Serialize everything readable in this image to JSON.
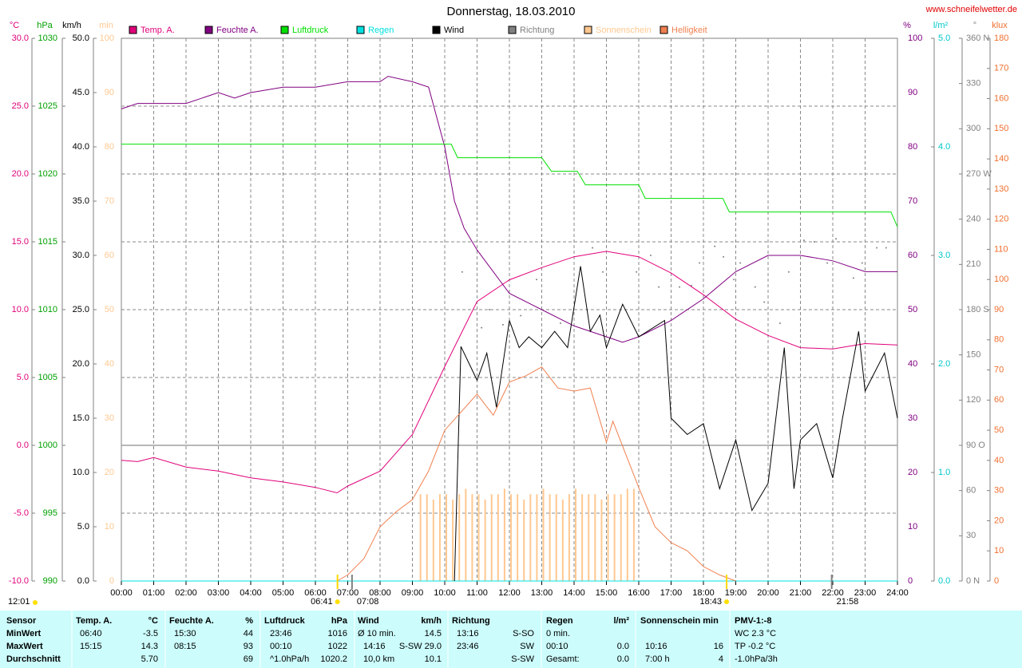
{
  "chart_data": {
    "type": "line",
    "title": "Donnerstag, 18.03.2010",
    "source": "www.schneifelwetter.de",
    "updated": "12:01",
    "grid": true,
    "xlim": [
      0,
      24
    ],
    "xticks": [
      {
        "value": 0,
        "label": "00:00"
      },
      {
        "value": 1,
        "label": "01:00"
      },
      {
        "value": 2,
        "label": "02:00"
      },
      {
        "value": 3,
        "label": "03:00"
      },
      {
        "value": 4,
        "label": "04:00"
      },
      {
        "value": 5,
        "label": "05:00"
      },
      {
        "value": 6,
        "label": "06:00"
      },
      {
        "value": 7,
        "label": "07:00"
      },
      {
        "value": 8,
        "label": "08:00"
      },
      {
        "value": 9,
        "label": "09:00"
      },
      {
        "value": 10,
        "label": "10:00"
      },
      {
        "value": 11,
        "label": "11:00"
      },
      {
        "value": 12,
        "label": "12:00"
      },
      {
        "value": 13,
        "label": "13:00"
      },
      {
        "value": 14,
        "label": "14:00"
      },
      {
        "value": 15,
        "label": "15:00"
      },
      {
        "value": 16,
        "label": "16:00"
      },
      {
        "value": 17,
        "label": "17:00"
      },
      {
        "value": 18,
        "label": "18:00"
      },
      {
        "value": 19,
        "label": "19:00"
      },
      {
        "value": 20,
        "label": "20:00"
      },
      {
        "value": 21,
        "label": "21:00"
      },
      {
        "value": 22,
        "label": "22:00"
      },
      {
        "value": 23,
        "label": "23:00"
      },
      {
        "value": 24,
        "label": "24:00"
      }
    ],
    "annotations": [
      {
        "label": "06:41",
        "x": 6.683,
        "kind": "sunrise"
      },
      {
        "label": "07:08",
        "x": 7.133,
        "kind": "mark"
      },
      {
        "label": "18:43",
        "x": 18.717,
        "kind": "sunset"
      },
      {
        "label": "21:58",
        "x": 21.967,
        "kind": "mark"
      }
    ],
    "axes": {
      "temp": {
        "unit": "°C",
        "color": "#e0007a",
        "ylim": [
          -10,
          30
        ],
        "yticks": [
          {
            "value": -10,
            "label": "-10.0"
          },
          {
            "value": -5,
            "label": "-5.0"
          },
          {
            "value": 0,
            "label": "0.0"
          },
          {
            "value": 5,
            "label": "5.0"
          },
          {
            "value": 10,
            "label": "10.0"
          },
          {
            "value": 15,
            "label": "15.0"
          },
          {
            "value": 20,
            "label": "20.0"
          },
          {
            "value": 25,
            "label": "25.0"
          },
          {
            "value": 30,
            "label": "30.0"
          }
        ]
      },
      "press": {
        "unit": "hPa",
        "color": "#00a000",
        "ylim": [
          990,
          1030
        ],
        "yticks": [
          990,
          995,
          1000,
          1005,
          1010,
          1015,
          1020,
          1025,
          1030
        ]
      },
      "wind": {
        "unit": "km/h",
        "color": "#000000",
        "ylim": [
          0,
          50
        ],
        "yticks": [
          {
            "value": 0,
            "label": "0.0"
          },
          {
            "value": 5,
            "label": "5.0"
          },
          {
            "value": 10,
            "label": "10.0"
          },
          {
            "value": 15,
            "label": "15.0"
          },
          {
            "value": 20,
            "label": "20.0"
          },
          {
            "value": 25,
            "label": "25.0"
          },
          {
            "value": 30,
            "label": "30.0"
          },
          {
            "value": 35,
            "label": "35.0"
          },
          {
            "value": 40,
            "label": "40.0"
          },
          {
            "value": 45,
            "label": "45.0"
          },
          {
            "value": 50,
            "label": "50.0"
          }
        ]
      },
      "sun": {
        "unit": "min",
        "color": "#ffc890",
        "ylim": [
          0,
          100
        ],
        "yticks": [
          0,
          10,
          20,
          30,
          40,
          50,
          60,
          70,
          80,
          90,
          100
        ]
      },
      "hum": {
        "unit": "%",
        "color": "#800080",
        "ylim": [
          0,
          100
        ],
        "yticks": [
          0,
          10,
          20,
          30,
          40,
          50,
          60,
          70,
          80,
          90,
          100
        ]
      },
      "rain": {
        "unit": "l/m²",
        "color": "#00c8c8",
        "ylim": [
          0,
          5
        ],
        "yticks": [
          {
            "value": 0,
            "label": "0.0"
          },
          {
            "value": 1,
            "label": "1.0"
          },
          {
            "value": 2,
            "label": "2.0"
          },
          {
            "value": 3,
            "label": "3.0"
          },
          {
            "value": 4,
            "label": "4.0"
          },
          {
            "value": 5,
            "label": "5.0"
          }
        ]
      },
      "dir": {
        "unit": "°",
        "color": "#808080",
        "ylim": [
          0,
          360
        ],
        "yticks": [
          {
            "value": 0,
            "label": "0 N"
          },
          30,
          60,
          {
            "value": 90,
            "label": "90 O"
          },
          120,
          150,
          {
            "value": 180,
            "label": "180 S"
          },
          210,
          240,
          {
            "value": 270,
            "label": "270 W"
          },
          300,
          330,
          {
            "value": 360,
            "label": "360 N"
          }
        ]
      },
      "lux": {
        "unit": "klux",
        "color": "#f07030",
        "ylim": [
          0,
          180
        ],
        "yticks": [
          0,
          10,
          20,
          30,
          40,
          50,
          60,
          70,
          80,
          90,
          100,
          110,
          120,
          130,
          140,
          150,
          160,
          170,
          180
        ]
      }
    },
    "series": [
      {
        "name": "Temp. A.",
        "color": "#e0007a",
        "axis": "temp",
        "mode": "line",
        "x": [
          0,
          0.5,
          1,
          2,
          3,
          4,
          5,
          6,
          6.67,
          7,
          8,
          9,
          10,
          11,
          12,
          13,
          14,
          15,
          16,
          17,
          18,
          19,
          20,
          21,
          22,
          23,
          24
        ],
        "values": [
          -1.1,
          -1.2,
          -0.9,
          -1.6,
          -1.9,
          -2.4,
          -2.7,
          -3.1,
          -3.5,
          -3.0,
          -1.9,
          0.8,
          5.8,
          10.6,
          12.2,
          13.1,
          13.9,
          14.3,
          13.9,
          12.7,
          11.1,
          9.3,
          8.1,
          7.2,
          7.1,
          7.5,
          7.4
        ]
      },
      {
        "name": "Feuchte A.",
        "color": "#800080",
        "axis": "hum",
        "mode": "line",
        "x": [
          0,
          0.5,
          1,
          2,
          2.5,
          3,
          3.5,
          4,
          5,
          6,
          7,
          8,
          8.25,
          9,
          9.5,
          10,
          10.3,
          10.6,
          11,
          12,
          13,
          14,
          15,
          15.5,
          16,
          17,
          18,
          19,
          20,
          21,
          22,
          23,
          24
        ],
        "values": [
          87,
          88,
          88,
          88,
          89,
          90,
          89,
          90,
          91,
          91,
          92,
          92,
          93,
          92,
          91,
          80,
          70,
          65,
          61,
          53,
          50,
          47,
          45,
          44,
          45,
          48,
          52,
          57,
          60,
          60,
          59,
          57,
          57
        ]
      },
      {
        "name": "Luftdruck",
        "color": "#00e000",
        "axis": "press",
        "mode": "line",
        "x": [
          0,
          10.2,
          10.4,
          13.0,
          13.3,
          14.1,
          14.35,
          16.0,
          16.2,
          18.6,
          18.8,
          23.8,
          24
        ],
        "values": [
          1022.2,
          1022.2,
          1021.2,
          1021.2,
          1020.2,
          1020.2,
          1019.2,
          1019.2,
          1018.2,
          1018.2,
          1017.2,
          1017.2,
          1016.1
        ]
      },
      {
        "name": "Regen",
        "color": "#00e0e0",
        "axis": "rain",
        "mode": "line",
        "x": [
          0,
          24
        ],
        "values": [
          0,
          0
        ]
      },
      {
        "name": "Wind",
        "color": "#000000",
        "axis": "wind",
        "mode": "line",
        "x": [
          10.3,
          10.5,
          11.0,
          11.3,
          11.6,
          12.0,
          12.3,
          12.6,
          13.0,
          13.4,
          13.8,
          14.2,
          14.5,
          14.8,
          15.0,
          15.5,
          16.0,
          16.8,
          17.0,
          17.5,
          18.0,
          18.5,
          19.0,
          19.5,
          20.0,
          20.5,
          20.8,
          21.0,
          21.5,
          22.0,
          22.3,
          22.8,
          23.0,
          23.6,
          24
        ],
        "values": [
          0,
          21.6,
          18.5,
          21,
          16,
          24,
          21.5,
          22.5,
          21.5,
          23,
          21.5,
          29,
          23,
          24.5,
          21.5,
          25.5,
          22.5,
          24,
          15,
          13.5,
          14.5,
          8.5,
          13,
          6.5,
          9,
          21.5,
          8.5,
          13,
          14.5,
          9.5,
          15,
          23,
          17.5,
          21,
          15
        ]
      },
      {
        "name": "Richtung",
        "color": "#808080",
        "axis": "dir",
        "mode": "markers",
        "x": [
          10.54,
          11.14,
          11.38,
          11.8,
          12.35,
          12.84,
          13.58,
          14.57,
          14.89,
          15.93,
          16.37,
          16.62,
          17.26,
          17.63,
          17.88,
          18.35,
          18.62,
          18.94,
          19.14,
          19.6,
          19.88,
          20.37,
          20.64,
          21.11,
          21.43,
          21.83,
          22.1,
          22.64,
          22.91,
          23.36,
          23.65
        ],
        "values": [
          205,
          168,
          180,
          170,
          176,
          200,
          171,
          221,
          205,
          205,
          216,
          195,
          195,
          196,
          211,
          222,
          215,
          200,
          211,
          195,
          185,
          171,
          205,
          226,
          225,
          211,
          227,
          201,
          211,
          221,
          221
        ]
      },
      {
        "name": "Sonnenschein",
        "color": "#ffc890",
        "axis": "sun",
        "mode": "bars",
        "x": [
          9.25,
          9.45,
          9.65,
          9.85,
          10.05,
          10.25,
          10.45,
          10.65,
          10.85,
          11.05,
          11.25,
          11.45,
          11.65,
          11.85,
          12.05,
          12.25,
          12.45,
          12.65,
          12.85,
          13.05,
          13.25,
          13.45,
          13.65,
          13.85,
          14.05,
          14.25,
          14.45,
          14.65,
          14.85,
          15.05,
          15.25,
          15.45,
          15.65,
          15.85
        ],
        "values": [
          16,
          16,
          15,
          16,
          16,
          15,
          16,
          17,
          16,
          16,
          15,
          16,
          16,
          17,
          16,
          16,
          15,
          16,
          16,
          17,
          16,
          16,
          15,
          16,
          17,
          16,
          16,
          16,
          15,
          16,
          16,
          16,
          17,
          17
        ]
      },
      {
        "name": "Helligkeit",
        "color": "#f08050",
        "axis": "lux",
        "mode": "line",
        "x": [
          6.67,
          7.0,
          7.5,
          8.0,
          8.5,
          9.0,
          9.5,
          10.0,
          10.5,
          11.0,
          11.5,
          12.0,
          12.5,
          13.0,
          13.5,
          14.0,
          14.5,
          15.0,
          15.2,
          16.0,
          16.5,
          17.0,
          17.5,
          18.0,
          18.5,
          19.0
        ],
        "values": [
          0,
          2,
          7.4,
          18,
          23,
          27,
          36.5,
          50,
          56,
          62,
          55,
          66,
          68,
          71,
          64,
          63,
          64,
          46,
          53,
          31,
          18,
          12.7,
          10,
          4.8,
          2,
          0
        ]
      }
    ]
  },
  "table": {
    "header": {
      "label": "Sensor",
      "temp_time": "Temp. A.",
      "temp": "°C",
      "hum_time": "Feuchte A.",
      "hum": "%",
      "press_time": "Luftdruck",
      "press": "hPa",
      "wind_time": "Wind",
      "wind": "km/h",
      "dir_time": "Richtung",
      "rain_time": "Regen",
      "rain": "l/m²",
      "sun_time": "Sonnenschein min",
      "pmv": "PMV-1:-8"
    },
    "rows": [
      {
        "label": "MinWert",
        "temp_time": "06:40",
        "temp": "-3.5",
        "hum_time": "15:30",
        "hum": "44",
        "press_time": "23:46",
        "press": "1016",
        "wind_time": "Ø 10 min.",
        "wind": "14.5",
        "dir_time": "13:16",
        "dir": "S-SO",
        "rain_time": "0 min.",
        "pmv": "WC 2.3 °C"
      },
      {
        "label": "MaxWert",
        "temp_time": "15:15",
        "temp": "14.3",
        "hum_time": "08:15",
        "hum": "93",
        "press_time": "00:10",
        "press": "1022",
        "wind_time": "14:16",
        "wind": "S-SW 29.0",
        "dir_time": "23:46",
        "dir": "SW",
        "rain_time": "00:10",
        "rain": "0.0",
        "sun_time": "10:16",
        "sun": "16",
        "pmv": "TP -0.2 °C"
      },
      {
        "label": "Durchschnitt",
        "temp": "5.70",
        "hum": "69",
        "press_time": "^1.0hPa/h",
        "press": "1020.2",
        "wind_time": "10,0 km",
        "wind": "10.1",
        "dir": "S-SW",
        "rain_time": "Gesamt:",
        "rain": "0.0",
        "sun_time": "7:00 h",
        "sun": "4",
        "pmv": "-1.0hPa/3h"
      }
    ]
  }
}
